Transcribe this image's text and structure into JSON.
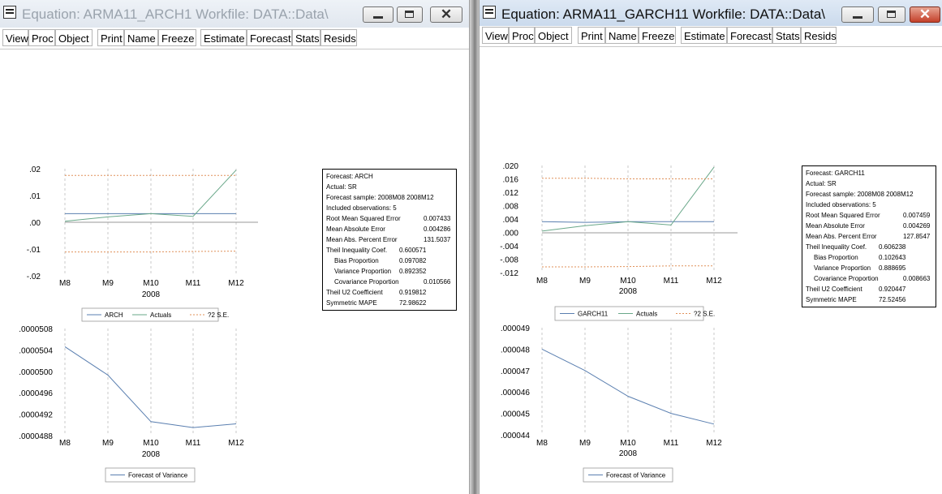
{
  "left": {
    "title": "Equation: ARMA11_ARCH1   Workfile: DATA::Data\\",
    "toolbar": [
      "View",
      "Proc",
      "Object",
      "Print",
      "Name",
      "Freeze",
      "Estimate",
      "Forecast",
      "Stats",
      "Resids"
    ],
    "forecast_chart": {
      "type": "line",
      "yticks": [
        ".02",
        ".01",
        ".00",
        "-.01",
        "-.02"
      ],
      "ylim": [
        -0.02,
        0.02
      ],
      "x": [
        "M8",
        "M9",
        "M10",
        "M11",
        "M12"
      ],
      "year": "2008",
      "series": [
        {
          "name": "ARCH",
          "values": [
            0.0032,
            0.0032,
            0.0032,
            0.0032,
            0.0032
          ]
        },
        {
          "name": "Actuals",
          "values": [
            0.0004,
            0.002,
            0.0032,
            0.0022,
            0.0195
          ]
        },
        {
          "name": "?2 S.E.",
          "values": [
            0.0175,
            0.0175,
            0.0175,
            0.0175,
            0.0175
          ]
        },
        {
          "name": "?2 S.E. lower",
          "values": [
            -0.0111,
            -0.0111,
            -0.0111,
            -0.0109,
            -0.0108
          ]
        }
      ],
      "legend": [
        "ARCH",
        "Actuals",
        "?2 S.E."
      ]
    },
    "variance_chart": {
      "type": "line",
      "yticks": [
        ".0000508",
        ".0000504",
        ".0000500",
        ".0000496",
        ".0000492",
        ".0000488"
      ],
      "ylim": [
        4.88e-05,
        5.08e-05
      ],
      "x": [
        "M8",
        "M9",
        "M10",
        "M11",
        "M12"
      ],
      "year": "2008",
      "series": [
        {
          "name": "Forecast of Variance",
          "values": [
            5.046e-05,
            4.993e-05,
            4.906e-05,
            4.895e-05,
            4.902e-05
          ]
        }
      ],
      "legend": [
        "Forecast of Variance"
      ]
    },
    "stats": {
      "header": [
        "Forecast: ARCH",
        "Actual: SR",
        "Forecast sample: 2008M08 2008M12",
        "Included observations: 5"
      ],
      "rows": [
        {
          "label": "Root Mean Squared Error",
          "value": "0.007433",
          "indent": false,
          "col": 1
        },
        {
          "label": "Mean Absolute Error",
          "value": "0.004286",
          "indent": false,
          "col": 1
        },
        {
          "label": "Mean Abs. Percent Error",
          "value": "131.5037",
          "indent": false,
          "col": 1
        },
        {
          "label": "Theil Inequality Coef.",
          "value": "0.600571",
          "indent": false,
          "col": 0
        },
        {
          "label": "Bias Proportion",
          "value": "0.097082",
          "indent": true,
          "col": 0
        },
        {
          "label": "Variance Proportion",
          "value": "0.892352",
          "indent": true,
          "col": 0
        },
        {
          "label": "Covariance Proportion",
          "value": "0.010566",
          "indent": true,
          "col": 1
        },
        {
          "label": "Theil U2 Coefficient",
          "value": "0.919812",
          "indent": false,
          "col": 0
        },
        {
          "label": "Symmetric MAPE",
          "value": "72.98622",
          "indent": false,
          "col": 0
        }
      ]
    }
  },
  "right": {
    "title": "Equation: ARMA11_GARCH11   Workfile: DATA::Data\\",
    "toolbar": [
      "View",
      "Proc",
      "Object",
      "Print",
      "Name",
      "Freeze",
      "Estimate",
      "Forecast",
      "Stats",
      "Resids"
    ],
    "forecast_chart": {
      "type": "line",
      "yticks": [
        ".020",
        ".016",
        ".012",
        ".008",
        ".004",
        ".000",
        "-.004",
        "-.008",
        "-.012"
      ],
      "ylim": [
        -0.012,
        0.02
      ],
      "x": [
        "M8",
        "M9",
        "M10",
        "M11",
        "M12"
      ],
      "year": "2008",
      "series": [
        {
          "name": "GARCH11",
          "values": [
            0.0032,
            0.003,
            0.0032,
            0.0032,
            0.0032
          ]
        },
        {
          "name": "Actuals",
          "values": [
            0.0004,
            0.002,
            0.0032,
            0.0022,
            0.0195
          ]
        },
        {
          "name": "?2 S.E.",
          "values": [
            0.0162,
            0.0162,
            0.016,
            0.016,
            0.016
          ]
        },
        {
          "name": "?2 S.E. lower",
          "values": [
            -0.0103,
            -0.0103,
            -0.0102,
            -0.01,
            -0.01
          ]
        }
      ],
      "legend": [
        "GARCH11",
        "Actuals",
        "?2 S.E."
      ]
    },
    "variance_chart": {
      "type": "line",
      "yticks": [
        ".000049",
        ".000048",
        ".000047",
        ".000046",
        ".000045",
        ".000044"
      ],
      "ylim": [
        4.4e-05,
        4.9e-05
      ],
      "x": [
        "M8",
        "M9",
        "M10",
        "M11",
        "M12"
      ],
      "year": "2008",
      "series": [
        {
          "name": "Forecast of Variance",
          "values": [
            4.8e-05,
            4.7e-05,
            4.58e-05,
            4.5e-05,
            4.45e-05
          ]
        }
      ],
      "legend": [
        "Forecast of Variance"
      ]
    },
    "stats": {
      "header": [
        "Forecast: GARCH11",
        "Actual: SR",
        "Forecast sample: 2008M08 2008M12",
        "Included observations: 5"
      ],
      "rows": [
        {
          "label": "Root Mean Squared Error",
          "value": "0.007459",
          "indent": false,
          "col": 1
        },
        {
          "label": "Mean Absolute Error",
          "value": "0.004269",
          "indent": false,
          "col": 1
        },
        {
          "label": "Mean Abs. Percent Error",
          "value": "127.8547",
          "indent": false,
          "col": 1
        },
        {
          "label": "Theil Inequality Coef.",
          "value": "0.606238",
          "indent": false,
          "col": 0
        },
        {
          "label": "Bias Proportion",
          "value": "0.102643",
          "indent": true,
          "col": 0
        },
        {
          "label": "Variance Proportion",
          "value": "0.888695",
          "indent": true,
          "col": 0
        },
        {
          "label": "Covariance Proportion",
          "value": "0.008663",
          "indent": true,
          "col": 1
        },
        {
          "label": "Theil U2 Coefficient",
          "value": "0.920447",
          "indent": false,
          "col": 0
        },
        {
          "label": "Symmetric MAPE",
          "value": "72.52456",
          "indent": false,
          "col": 0
        }
      ]
    }
  },
  "colors": {
    "forecast": "#5a7fb0",
    "actuals": "#6aa88a",
    "se_band": "#e0915a",
    "gridline": "#c8c8c8"
  }
}
